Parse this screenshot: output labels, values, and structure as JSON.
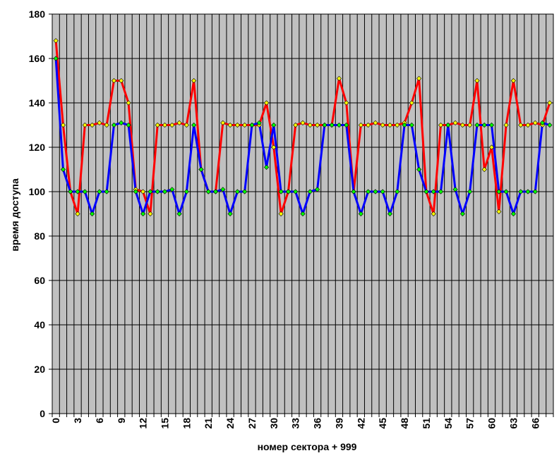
{
  "chart_data": {
    "type": "line",
    "title": "",
    "xlabel": "номер сектора + 999",
    "ylabel": "время доступа",
    "ylim": [
      0,
      180
    ],
    "yticks": [
      0,
      20,
      40,
      60,
      80,
      100,
      120,
      140,
      160,
      180
    ],
    "x": [
      0,
      1,
      2,
      3,
      4,
      5,
      6,
      7,
      8,
      9,
      10,
      11,
      12,
      13,
      14,
      15,
      16,
      17,
      18,
      19,
      20,
      21,
      22,
      23,
      24,
      25,
      26,
      27,
      28,
      29,
      30,
      31,
      32,
      33,
      34,
      35,
      36,
      37,
      38,
      39,
      40,
      41,
      42,
      43,
      44,
      45,
      46,
      47,
      48,
      49,
      50,
      51,
      52,
      53,
      54,
      55,
      56,
      57,
      58,
      59,
      60,
      61,
      62,
      63,
      64,
      65,
      66,
      67,
      68
    ],
    "xtick_labels": [
      "0",
      "3",
      "6",
      "9",
      "12",
      "15",
      "18",
      "21",
      "24",
      "27",
      "30",
      "33",
      "36",
      "39",
      "42",
      "45",
      "48",
      "51",
      "54",
      "57",
      "60",
      "63",
      "66"
    ],
    "xtick_values": [
      0,
      3,
      6,
      9,
      12,
      15,
      18,
      21,
      24,
      27,
      30,
      33,
      36,
      39,
      42,
      45,
      48,
      51,
      54,
      57,
      60,
      63,
      66
    ],
    "grid": true,
    "plot_background": "#c0c0c0",
    "series": [
      {
        "color": "#ff0000",
        "marker_color": "#ffff00",
        "values": [
          168,
          130,
          100,
          90,
          130,
          130,
          131,
          130,
          150,
          150,
          140,
          101,
          100,
          90,
          130,
          130,
          130,
          131,
          130,
          150,
          110,
          100,
          100,
          131,
          130,
          130,
          130,
          130,
          130,
          140,
          120,
          90,
          100,
          130,
          131,
          130,
          130,
          130,
          130,
          151,
          140,
          100,
          130,
          130,
          131,
          130,
          130,
          130,
          131,
          140,
          151,
          100,
          90,
          130,
          130,
          131,
          130,
          130,
          150,
          110,
          120,
          91,
          130,
          150,
          130,
          130,
          131,
          130,
          140
        ]
      },
      {
        "color": "#0000ff",
        "marker_color": "#00ff00",
        "values": [
          160,
          110,
          100,
          100,
          100,
          90,
          100,
          100,
          130,
          131,
          130,
          100,
          90,
          100,
          100,
          100,
          101,
          90,
          100,
          130,
          110,
          100,
          100,
          101,
          90,
          100,
          100,
          130,
          131,
          111,
          130,
          100,
          100,
          100,
          90,
          100,
          101,
          130,
          130,
          130,
          130,
          100,
          90,
          100,
          100,
          100,
          90,
          100,
          130,
          130,
          110,
          100,
          100,
          100,
          130,
          101,
          90,
          100,
          130,
          130,
          130,
          100,
          100,
          90,
          100,
          100,
          100,
          131,
          130
        ]
      }
    ]
  }
}
